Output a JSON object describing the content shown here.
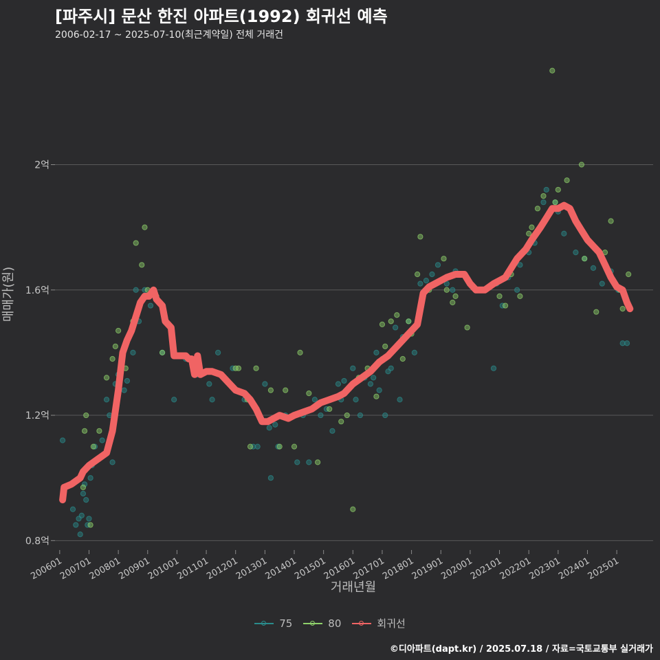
{
  "title": "[파주시] 문산 한진 아파트(1992) 회귀선 예측",
  "subtitle": "2006-02-17 ~ 2025-07-10(최근계약일) 전체 거래건",
  "caption": "©디아파트(dapt.kr) / 2025.07.18 / 자료=국토교통부 실거래가",
  "colors": {
    "background": "#2b2b2d",
    "s75": "#2a8c8c",
    "s80": "#8fd16b",
    "regression": "#f06464",
    "grid": "#5a5a5a"
  },
  "chart_data": {
    "type": "scatter",
    "xlabel": "거래년월",
    "ylabel": "매매가(원)",
    "x_ticks": [
      "200601",
      "200701",
      "200801",
      "200901",
      "201001",
      "201101",
      "201201",
      "201301",
      "201401",
      "201501",
      "201601",
      "201701",
      "201801",
      "201901",
      "202001",
      "202101",
      "202201",
      "202301",
      "202401",
      "202501"
    ],
    "y_ticks": [
      {
        "value": 0.8,
        "label": "0.8억"
      },
      {
        "value": 1.2,
        "label": "1.2억"
      },
      {
        "value": 1.6,
        "label": "1.6억"
      },
      {
        "value": 2.0,
        "label": "2억"
      }
    ],
    "ylim": [
      0.77,
      2.35
    ],
    "xlim": [
      2005.84,
      2026.24
    ],
    "grid": "horizontal",
    "legend": {
      "placement": "bottom",
      "items": [
        {
          "key": "s75",
          "label": "75"
        },
        {
          "key": "s80",
          "label": "80"
        },
        {
          "key": "regression",
          "label": "회귀선"
        }
      ]
    },
    "series": [
      {
        "name": "75",
        "points": [
          [
            2006.1,
            1.12
          ],
          [
            2006.45,
            0.9
          ],
          [
            2006.55,
            0.85
          ],
          [
            2006.65,
            0.87
          ],
          [
            2006.7,
            0.82
          ],
          [
            2006.75,
            0.88
          ],
          [
            2006.8,
            0.95
          ],
          [
            2006.85,
            0.98
          ],
          [
            2006.9,
            0.93
          ],
          [
            2006.95,
            0.85
          ],
          [
            2007.0,
            0.87
          ],
          [
            2007.05,
            1.0
          ],
          [
            2007.1,
            1.04
          ],
          [
            2007.2,
            1.1
          ],
          [
            2007.3,
            1.06
          ],
          [
            2007.45,
            1.12
          ],
          [
            2007.6,
            1.25
          ],
          [
            2007.7,
            1.2
          ],
          [
            2007.8,
            1.05
          ],
          [
            2007.9,
            1.3
          ],
          [
            2008.0,
            1.33
          ],
          [
            2008.2,
            1.28
          ],
          [
            2008.3,
            1.31
          ],
          [
            2008.5,
            1.4
          ],
          [
            2008.6,
            1.6
          ],
          [
            2008.7,
            1.5
          ],
          [
            2008.9,
            1.6
          ],
          [
            2009.1,
            1.55
          ],
          [
            2009.5,
            1.4
          ],
          [
            2009.9,
            1.25
          ],
          [
            2010.3,
            1.38
          ],
          [
            2010.7,
            1.33
          ],
          [
            2011.1,
            1.3
          ],
          [
            2011.2,
            1.25
          ],
          [
            2011.4,
            1.4
          ],
          [
            2011.9,
            1.35
          ],
          [
            2012.3,
            1.25
          ],
          [
            2012.6,
            1.1
          ],
          [
            2012.75,
            1.1
          ],
          [
            2013.0,
            1.3
          ],
          [
            2013.15,
            1.16
          ],
          [
            2013.2,
            1.0
          ],
          [
            2013.35,
            1.17
          ],
          [
            2013.45,
            1.1
          ],
          [
            2013.7,
            1.2
          ],
          [
            2014.1,
            1.05
          ],
          [
            2014.3,
            1.2
          ],
          [
            2014.5,
            1.05
          ],
          [
            2014.7,
            1.25
          ],
          [
            2014.9,
            1.2
          ],
          [
            2015.1,
            1.22
          ],
          [
            2015.3,
            1.15
          ],
          [
            2015.5,
            1.3
          ],
          [
            2015.6,
            1.25
          ],
          [
            2015.7,
            1.31
          ],
          [
            2015.8,
            1.28
          ],
          [
            2016.0,
            1.35
          ],
          [
            2016.1,
            1.25
          ],
          [
            2016.25,
            1.2
          ],
          [
            2016.4,
            1.32
          ],
          [
            2016.6,
            1.3
          ],
          [
            2016.7,
            1.32
          ],
          [
            2016.8,
            1.4
          ],
          [
            2016.9,
            1.28
          ],
          [
            2017.0,
            1.38
          ],
          [
            2017.1,
            1.2
          ],
          [
            2017.2,
            1.34
          ],
          [
            2017.3,
            1.35
          ],
          [
            2017.45,
            1.48
          ],
          [
            2017.6,
            1.25
          ],
          [
            2017.7,
            1.45
          ],
          [
            2017.9,
            1.5
          ],
          [
            2018.1,
            1.4
          ],
          [
            2018.3,
            1.62
          ],
          [
            2018.5,
            1.63
          ],
          [
            2018.7,
            1.65
          ],
          [
            2018.9,
            1.68
          ],
          [
            2019.2,
            1.62
          ],
          [
            2019.4,
            1.6
          ],
          [
            2019.5,
            1.66
          ],
          [
            2020.8,
            1.35
          ],
          [
            2020.9,
            1.62
          ],
          [
            2021.1,
            1.55
          ],
          [
            2021.3,
            1.64
          ],
          [
            2021.6,
            1.6
          ],
          [
            2021.7,
            1.68
          ],
          [
            2022.0,
            1.72
          ],
          [
            2022.2,
            1.75
          ],
          [
            2022.4,
            1.8
          ],
          [
            2022.5,
            1.88
          ],
          [
            2022.6,
            1.92
          ],
          [
            2022.9,
            1.88
          ],
          [
            2023.0,
            1.85
          ],
          [
            2023.2,
            1.78
          ],
          [
            2023.6,
            1.72
          ],
          [
            2023.9,
            1.7
          ],
          [
            2024.2,
            1.67
          ],
          [
            2024.5,
            1.62
          ],
          [
            2024.8,
            1.66
          ],
          [
            2025.05,
            1.6
          ],
          [
            2025.2,
            1.43
          ],
          [
            2025.35,
            1.43
          ]
        ]
      },
      {
        "name": "80",
        "points": [
          [
            2006.8,
            0.97
          ],
          [
            2006.85,
            1.15
          ],
          [
            2006.9,
            1.2
          ],
          [
            2007.05,
            0.85
          ],
          [
            2007.15,
            1.1
          ],
          [
            2007.35,
            1.15
          ],
          [
            2007.6,
            1.32
          ],
          [
            2007.8,
            1.38
          ],
          [
            2007.9,
            1.42
          ],
          [
            2008.0,
            1.47
          ],
          [
            2008.25,
            1.35
          ],
          [
            2008.5,
            1.5
          ],
          [
            2008.6,
            1.75
          ],
          [
            2008.8,
            1.68
          ],
          [
            2008.9,
            1.8
          ],
          [
            2009.0,
            1.6
          ],
          [
            2009.3,
            1.58
          ],
          [
            2009.5,
            1.4
          ],
          [
            2010.5,
            1.38
          ],
          [
            2011.5,
            1.33
          ],
          [
            2012.0,
            1.35
          ],
          [
            2012.1,
            1.35
          ],
          [
            2012.4,
            1.25
          ],
          [
            2012.5,
            1.1
          ],
          [
            2012.7,
            1.35
          ],
          [
            2013.2,
            1.28
          ],
          [
            2013.5,
            1.1
          ],
          [
            2013.7,
            1.28
          ],
          [
            2014.0,
            1.1
          ],
          [
            2014.2,
            1.4
          ],
          [
            2014.5,
            1.27
          ],
          [
            2014.8,
            1.05
          ],
          [
            2015.2,
            1.22
          ],
          [
            2015.6,
            1.18
          ],
          [
            2015.8,
            1.2
          ],
          [
            2016.0,
            0.9
          ],
          [
            2016.2,
            1.32
          ],
          [
            2016.5,
            1.35
          ],
          [
            2016.8,
            1.26
          ],
          [
            2017.0,
            1.49
          ],
          [
            2017.1,
            1.42
          ],
          [
            2017.3,
            1.5
          ],
          [
            2017.5,
            1.52
          ],
          [
            2017.7,
            1.38
          ],
          [
            2017.9,
            1.5
          ],
          [
            2018.0,
            1.46
          ],
          [
            2018.2,
            1.65
          ],
          [
            2018.3,
            1.77
          ],
          [
            2018.6,
            1.6
          ],
          [
            2018.8,
            1.62
          ],
          [
            2019.1,
            1.7
          ],
          [
            2019.2,
            1.6
          ],
          [
            2019.4,
            1.56
          ],
          [
            2019.5,
            1.58
          ],
          [
            2019.9,
            1.48
          ],
          [
            2021.0,
            1.58
          ],
          [
            2021.2,
            1.55
          ],
          [
            2021.4,
            1.65
          ],
          [
            2021.7,
            1.58
          ],
          [
            2021.8,
            1.72
          ],
          [
            2022.0,
            1.78
          ],
          [
            2022.1,
            1.8
          ],
          [
            2022.3,
            1.86
          ],
          [
            2022.5,
            1.9
          ],
          [
            2022.8,
            1.86
          ],
          [
            2022.9,
            1.88
          ],
          [
            2023.0,
            1.92
          ],
          [
            2023.3,
            1.95
          ],
          [
            2023.6,
            1.82
          ],
          [
            2023.8,
            2.0
          ],
          [
            2023.9,
            1.7
          ],
          [
            2024.3,
            1.53
          ],
          [
            2024.6,
            1.72
          ],
          [
            2024.8,
            1.82
          ],
          [
            2025.1,
            1.6
          ],
          [
            2025.2,
            1.54
          ],
          [
            2025.4,
            1.65
          ],
          [
            2022.8,
            2.3
          ]
        ]
      },
      {
        "name": "회귀선",
        "points": [
          [
            2006.1,
            0.93
          ],
          [
            2006.15,
            0.97
          ],
          [
            2006.4,
            0.98
          ],
          [
            2006.7,
            1.0
          ],
          [
            2006.8,
            1.02
          ],
          [
            2007.0,
            1.04
          ],
          [
            2007.3,
            1.06
          ],
          [
            2007.6,
            1.08
          ],
          [
            2007.8,
            1.15
          ],
          [
            2008.0,
            1.28
          ],
          [
            2008.15,
            1.4
          ],
          [
            2008.3,
            1.44
          ],
          [
            2008.45,
            1.47
          ],
          [
            2008.55,
            1.5
          ],
          [
            2008.75,
            1.56
          ],
          [
            2008.9,
            1.58
          ],
          [
            2009.05,
            1.58
          ],
          [
            2009.2,
            1.6
          ],
          [
            2009.3,
            1.57
          ],
          [
            2009.5,
            1.55
          ],
          [
            2009.6,
            1.5
          ],
          [
            2009.8,
            1.48
          ],
          [
            2009.9,
            1.39
          ],
          [
            2010.3,
            1.39
          ],
          [
            2010.4,
            1.38
          ],
          [
            2010.5,
            1.38
          ],
          [
            2010.6,
            1.33
          ],
          [
            2010.7,
            1.39
          ],
          [
            2010.8,
            1.33
          ],
          [
            2011.0,
            1.34
          ],
          [
            2011.2,
            1.34
          ],
          [
            2011.5,
            1.33
          ],
          [
            2011.8,
            1.3
          ],
          [
            2012.0,
            1.28
          ],
          [
            2012.3,
            1.27
          ],
          [
            2012.5,
            1.25
          ],
          [
            2012.7,
            1.22
          ],
          [
            2012.9,
            1.18
          ],
          [
            2013.1,
            1.18
          ],
          [
            2013.3,
            1.19
          ],
          [
            2013.5,
            1.2
          ],
          [
            2013.8,
            1.19
          ],
          [
            2014.0,
            1.2
          ],
          [
            2014.3,
            1.21
          ],
          [
            2014.6,
            1.22
          ],
          [
            2014.9,
            1.24
          ],
          [
            2015.2,
            1.25
          ],
          [
            2015.5,
            1.26
          ],
          [
            2015.7,
            1.27
          ],
          [
            2016.0,
            1.3
          ],
          [
            2016.3,
            1.32
          ],
          [
            2016.6,
            1.34
          ],
          [
            2016.9,
            1.37
          ],
          [
            2017.2,
            1.39
          ],
          [
            2017.5,
            1.42
          ],
          [
            2017.8,
            1.45
          ],
          [
            2018.0,
            1.47
          ],
          [
            2018.2,
            1.49
          ],
          [
            2018.4,
            1.59
          ],
          [
            2018.6,
            1.61
          ],
          [
            2018.8,
            1.62
          ],
          [
            2019.0,
            1.63
          ],
          [
            2019.2,
            1.64
          ],
          [
            2019.5,
            1.65
          ],
          [
            2019.8,
            1.65
          ],
          [
            2020.0,
            1.62
          ],
          [
            2020.2,
            1.6
          ],
          [
            2020.5,
            1.6
          ],
          [
            2020.8,
            1.62
          ],
          [
            2021.0,
            1.63
          ],
          [
            2021.2,
            1.64
          ],
          [
            2021.4,
            1.67
          ],
          [
            2021.6,
            1.7
          ],
          [
            2021.9,
            1.73
          ],
          [
            2022.1,
            1.76
          ],
          [
            2022.4,
            1.8
          ],
          [
            2022.6,
            1.83
          ],
          [
            2022.8,
            1.86
          ],
          [
            2023.0,
            1.86
          ],
          [
            2023.2,
            1.87
          ],
          [
            2023.4,
            1.86
          ],
          [
            2023.6,
            1.82
          ],
          [
            2023.8,
            1.79
          ],
          [
            2024.0,
            1.76
          ],
          [
            2024.2,
            1.74
          ],
          [
            2024.4,
            1.72
          ],
          [
            2024.6,
            1.68
          ],
          [
            2024.8,
            1.64
          ],
          [
            2025.0,
            1.61
          ],
          [
            2025.2,
            1.6
          ],
          [
            2025.35,
            1.56
          ],
          [
            2025.45,
            1.54
          ]
        ]
      }
    ]
  }
}
